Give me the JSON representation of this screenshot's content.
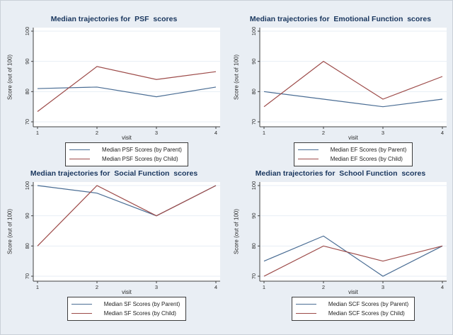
{
  "colors": {
    "parent": "#4a6d94",
    "child": "#9d4b49",
    "grid": "#e7eef5",
    "axis": "#404040",
    "tick_text": "#2b2b2b",
    "title": "#19365e",
    "background": "#e9eef4",
    "plot_background": "#ffffff",
    "legend_border": "#3c3c3c"
  },
  "chart_data": [
    {
      "type": "line",
      "title": "Median trajectories for  PSF  scores",
      "xlabel": "visit",
      "ylabel": "Score (out of 100)",
      "x": [
        1,
        2,
        3,
        4
      ],
      "xlim": [
        1,
        4
      ],
      "ylim": [
        70,
        100
      ],
      "yticks": [
        70,
        80,
        90,
        100
      ],
      "grid": "horizontal",
      "legend_position": "bottom",
      "series": [
        {
          "key": "parent",
          "name": "Median PSF Scores (by Parent)",
          "values": [
            81,
            81.5,
            78.3,
            81.5
          ]
        },
        {
          "key": "child",
          "name": "Median PSF Scores (by Child)",
          "values": [
            73.4,
            88.3,
            84,
            86.6
          ]
        }
      ]
    },
    {
      "type": "line",
      "title": "Median trajectories for  Emotional Function  scores",
      "xlabel": "visit",
      "ylabel": "Score (out of 100)",
      "x": [
        1,
        2,
        3,
        4
      ],
      "xlim": [
        1,
        4
      ],
      "ylim": [
        70,
        100
      ],
      "yticks": [
        70,
        80,
        90,
        100
      ],
      "grid": "horizontal",
      "legend_position": "bottom",
      "series": [
        {
          "key": "parent",
          "name": "Median EF Scores (by Parent)",
          "values": [
            80,
            77.5,
            75,
            77.5
          ]
        },
        {
          "key": "child",
          "name": "Median EF Scores (by Child)",
          "values": [
            75,
            90,
            77.5,
            85
          ]
        }
      ]
    },
    {
      "type": "line",
      "title": "Median trajectories for  Social Function  scores",
      "xlabel": "visit",
      "ylabel": "Score (out of 100)",
      "x": [
        1,
        2,
        3,
        4
      ],
      "xlim": [
        1,
        4
      ],
      "ylim": [
        70,
        100
      ],
      "yticks": [
        70,
        80,
        90,
        100
      ],
      "grid": "horizontal",
      "legend_position": "bottom",
      "series": [
        {
          "key": "parent",
          "name": "Median SF Scores (by Parent)",
          "values": [
            100,
            97.5,
            90,
            100
          ]
        },
        {
          "key": "child",
          "name": "Median SF Scores (by Child)",
          "values": [
            80,
            100,
            90,
            100
          ]
        }
      ]
    },
    {
      "type": "line",
      "title": "Median trajectories for  School Function  scores",
      "xlabel": "visit",
      "ylabel": "Score (out of 100)",
      "x": [
        1,
        2,
        3,
        4
      ],
      "xlim": [
        1,
        4
      ],
      "ylim": [
        70,
        100
      ],
      "yticks": [
        70,
        80,
        90,
        100
      ],
      "grid": "horizontal",
      "legend_position": "bottom",
      "series": [
        {
          "key": "parent",
          "name": "Median SCF Scores (by Parent)",
          "values": [
            75,
            83.3,
            70,
            80
          ]
        },
        {
          "key": "child",
          "name": "Median SCF Scores (by Child)",
          "values": [
            70,
            80,
            75,
            80
          ]
        }
      ]
    }
  ]
}
